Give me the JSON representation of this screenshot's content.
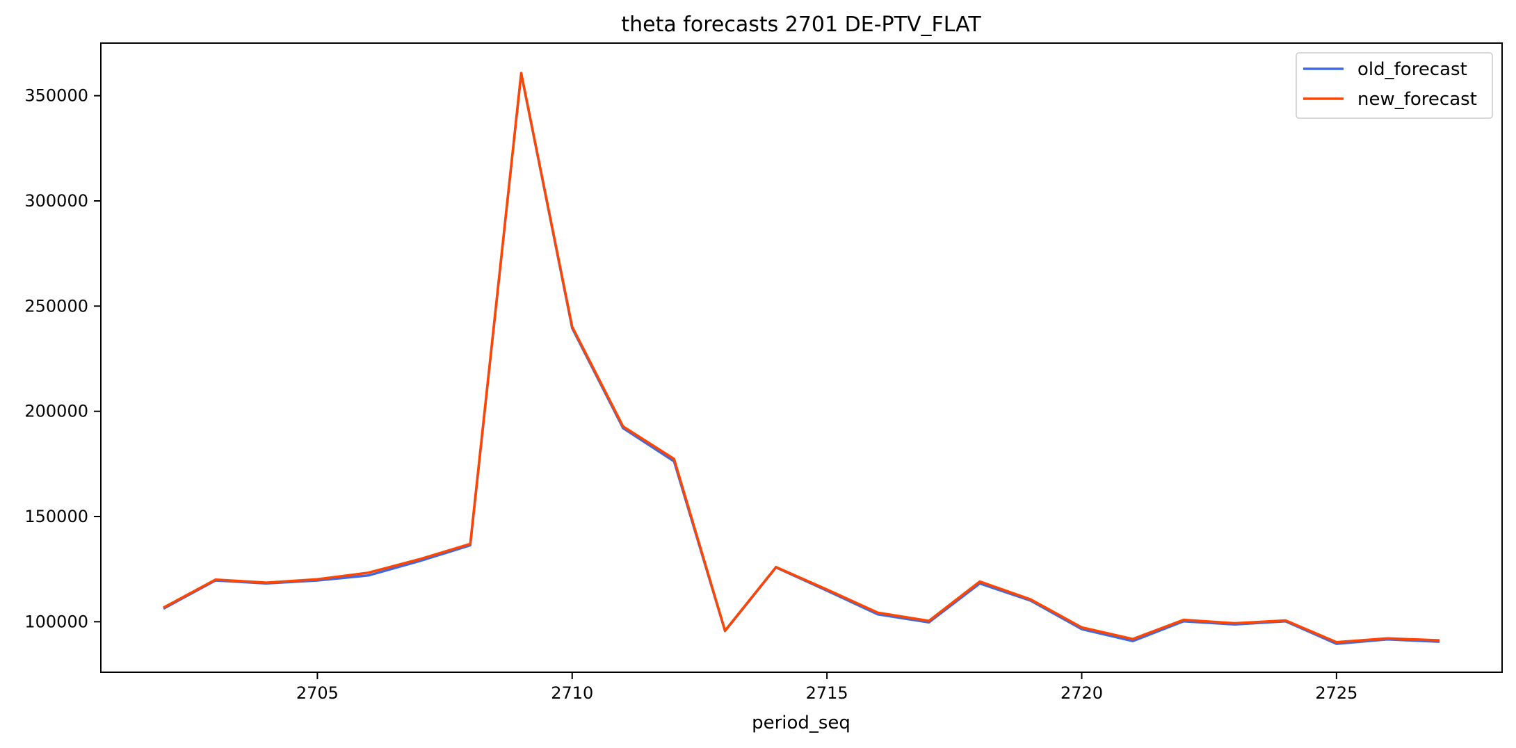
{
  "chart_data": {
    "type": "line",
    "title": "theta forecasts 2701 DE-PTV_FLAT",
    "xlabel": "period_seq",
    "ylabel": "",
    "x": [
      2702,
      2703,
      2704,
      2705,
      2706,
      2707,
      2708,
      2709,
      2710,
      2711,
      2712,
      2713,
      2714,
      2715,
      2716,
      2717,
      2718,
      2719,
      2720,
      2721,
      2722,
      2723,
      2724,
      2725,
      2726,
      2727
    ],
    "xlim": [
      2700.75,
      2728.25
    ],
    "ylim": [
      76000,
      375000
    ],
    "xticks": [
      2705,
      2710,
      2715,
      2720,
      2725
    ],
    "xtick_labels": [
      "2705",
      "2710",
      "2715",
      "2720",
      "2725"
    ],
    "yticks": [
      100000,
      150000,
      200000,
      250000,
      300000,
      350000
    ],
    "ytick_labels": [
      "100000",
      "150000",
      "200000",
      "250000",
      "300000",
      "350000"
    ],
    "grid": false,
    "legend_position": "top-right",
    "series": [
      {
        "name": "old_forecast",
        "color": "#4169e1",
        "values": [
          106500,
          119600,
          118200,
          119600,
          122000,
          128800,
          136300,
          360500,
          239500,
          192000,
          176200,
          95600,
          125800,
          114800,
          103500,
          99700,
          118200,
          110000,
          96500,
          90800,
          100200,
          98700,
          100200,
          89500,
          91600,
          90500
        ]
      },
      {
        "name": "new_forecast",
        "color": "#ff4500",
        "values": [
          107000,
          120000,
          118600,
          120200,
          123300,
          129700,
          137000,
          360800,
          240200,
          192800,
          177400,
          95800,
          126000,
          115300,
          104300,
          100400,
          119100,
          110600,
          97300,
          91800,
          100900,
          99300,
          100600,
          90300,
          92100,
          91200
        ]
      }
    ]
  }
}
